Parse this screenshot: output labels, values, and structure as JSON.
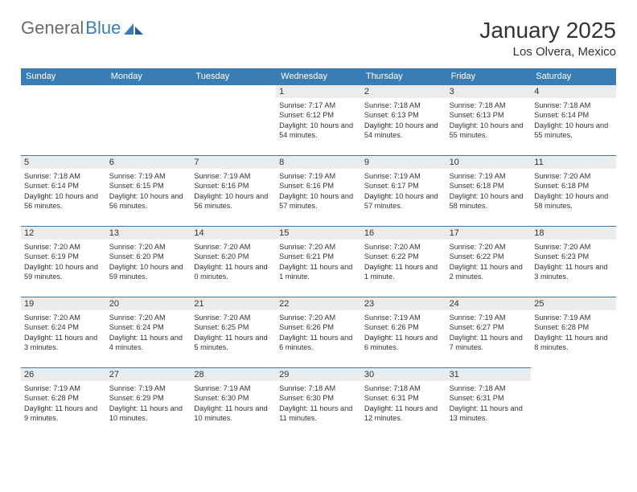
{
  "brand": {
    "word1": "General",
    "word2": "Blue"
  },
  "title": "January 2025",
  "location": "Los Olvera, Mexico",
  "colors": {
    "header_bg": "#3a7db5",
    "header_fg": "#ffffff",
    "daynum_bg": "#ececec",
    "border": "#3a7db5",
    "text": "#333333",
    "logo_gray": "#6b6b6b"
  },
  "dows": [
    "Sunday",
    "Monday",
    "Tuesday",
    "Wednesday",
    "Thursday",
    "Friday",
    "Saturday"
  ],
  "first_dow": 3,
  "days": [
    {
      "n": 1,
      "sunrise": "7:17 AM",
      "sunset": "6:12 PM",
      "dl": "10 hours and 54 minutes."
    },
    {
      "n": 2,
      "sunrise": "7:18 AM",
      "sunset": "6:13 PM",
      "dl": "10 hours and 54 minutes."
    },
    {
      "n": 3,
      "sunrise": "7:18 AM",
      "sunset": "6:13 PM",
      "dl": "10 hours and 55 minutes."
    },
    {
      "n": 4,
      "sunrise": "7:18 AM",
      "sunset": "6:14 PM",
      "dl": "10 hours and 55 minutes."
    },
    {
      "n": 5,
      "sunrise": "7:18 AM",
      "sunset": "6:14 PM",
      "dl": "10 hours and 56 minutes."
    },
    {
      "n": 6,
      "sunrise": "7:19 AM",
      "sunset": "6:15 PM",
      "dl": "10 hours and 56 minutes."
    },
    {
      "n": 7,
      "sunrise": "7:19 AM",
      "sunset": "6:16 PM",
      "dl": "10 hours and 56 minutes."
    },
    {
      "n": 8,
      "sunrise": "7:19 AM",
      "sunset": "6:16 PM",
      "dl": "10 hours and 57 minutes."
    },
    {
      "n": 9,
      "sunrise": "7:19 AM",
      "sunset": "6:17 PM",
      "dl": "10 hours and 57 minutes."
    },
    {
      "n": 10,
      "sunrise": "7:19 AM",
      "sunset": "6:18 PM",
      "dl": "10 hours and 58 minutes."
    },
    {
      "n": 11,
      "sunrise": "7:20 AM",
      "sunset": "6:18 PM",
      "dl": "10 hours and 58 minutes."
    },
    {
      "n": 12,
      "sunrise": "7:20 AM",
      "sunset": "6:19 PM",
      "dl": "10 hours and 59 minutes."
    },
    {
      "n": 13,
      "sunrise": "7:20 AM",
      "sunset": "6:20 PM",
      "dl": "10 hours and 59 minutes."
    },
    {
      "n": 14,
      "sunrise": "7:20 AM",
      "sunset": "6:20 PM",
      "dl": "11 hours and 0 minutes."
    },
    {
      "n": 15,
      "sunrise": "7:20 AM",
      "sunset": "6:21 PM",
      "dl": "11 hours and 1 minute."
    },
    {
      "n": 16,
      "sunrise": "7:20 AM",
      "sunset": "6:22 PM",
      "dl": "11 hours and 1 minute."
    },
    {
      "n": 17,
      "sunrise": "7:20 AM",
      "sunset": "6:22 PM",
      "dl": "11 hours and 2 minutes."
    },
    {
      "n": 18,
      "sunrise": "7:20 AM",
      "sunset": "6:23 PM",
      "dl": "11 hours and 3 minutes."
    },
    {
      "n": 19,
      "sunrise": "7:20 AM",
      "sunset": "6:24 PM",
      "dl": "11 hours and 3 minutes."
    },
    {
      "n": 20,
      "sunrise": "7:20 AM",
      "sunset": "6:24 PM",
      "dl": "11 hours and 4 minutes."
    },
    {
      "n": 21,
      "sunrise": "7:20 AM",
      "sunset": "6:25 PM",
      "dl": "11 hours and 5 minutes."
    },
    {
      "n": 22,
      "sunrise": "7:20 AM",
      "sunset": "6:26 PM",
      "dl": "11 hours and 6 minutes."
    },
    {
      "n": 23,
      "sunrise": "7:19 AM",
      "sunset": "6:26 PM",
      "dl": "11 hours and 6 minutes."
    },
    {
      "n": 24,
      "sunrise": "7:19 AM",
      "sunset": "6:27 PM",
      "dl": "11 hours and 7 minutes."
    },
    {
      "n": 25,
      "sunrise": "7:19 AM",
      "sunset": "6:28 PM",
      "dl": "11 hours and 8 minutes."
    },
    {
      "n": 26,
      "sunrise": "7:19 AM",
      "sunset": "6:28 PM",
      "dl": "11 hours and 9 minutes."
    },
    {
      "n": 27,
      "sunrise": "7:19 AM",
      "sunset": "6:29 PM",
      "dl": "11 hours and 10 minutes."
    },
    {
      "n": 28,
      "sunrise": "7:19 AM",
      "sunset": "6:30 PM",
      "dl": "11 hours and 10 minutes."
    },
    {
      "n": 29,
      "sunrise": "7:18 AM",
      "sunset": "6:30 PM",
      "dl": "11 hours and 11 minutes."
    },
    {
      "n": 30,
      "sunrise": "7:18 AM",
      "sunset": "6:31 PM",
      "dl": "11 hours and 12 minutes."
    },
    {
      "n": 31,
      "sunrise": "7:18 AM",
      "sunset": "6:31 PM",
      "dl": "11 hours and 13 minutes."
    }
  ],
  "labels": {
    "sunrise": "Sunrise:",
    "sunset": "Sunset:",
    "daylight": "Daylight:"
  }
}
